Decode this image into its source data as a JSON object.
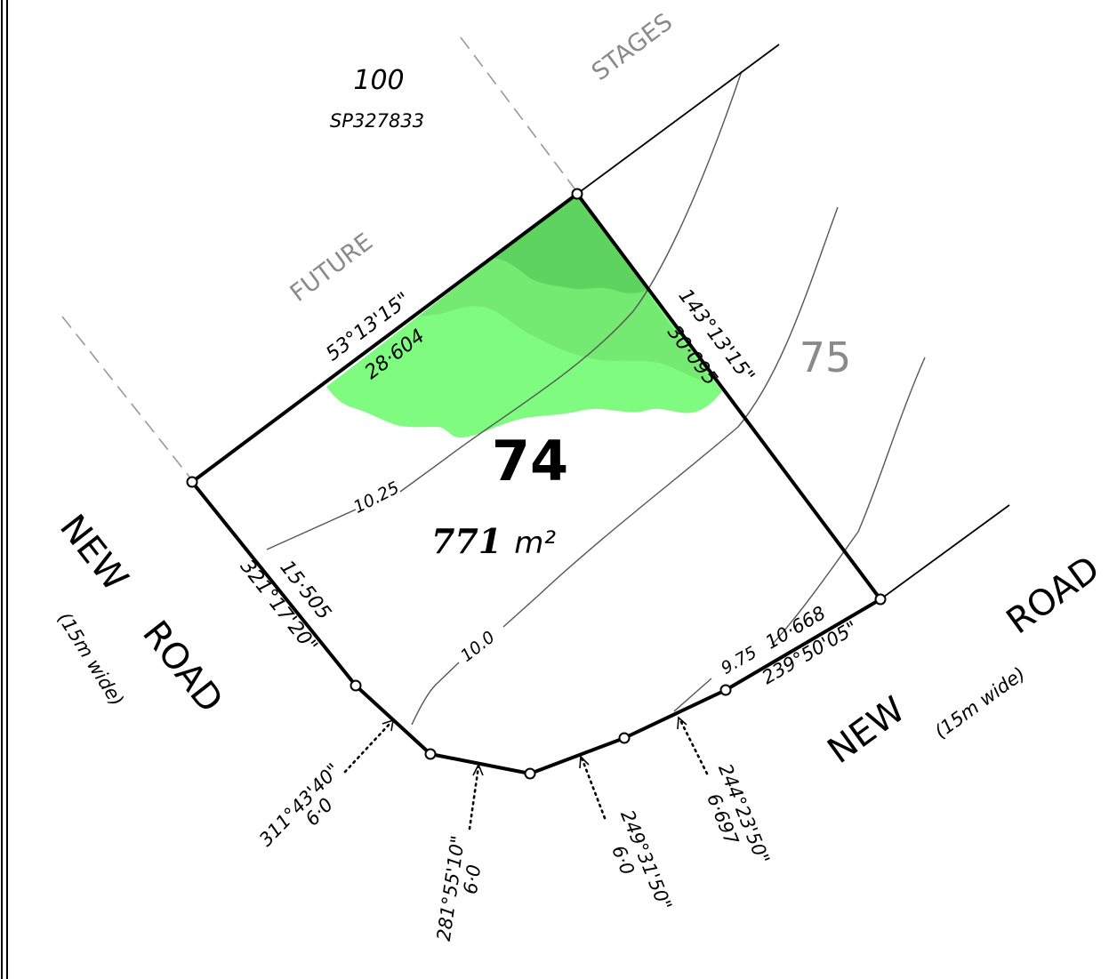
{
  "lot": {
    "number": "74",
    "area_value": "771",
    "area_unit": "m²"
  },
  "adjoining_lots": {
    "lot_75": "75",
    "lot_100": "100",
    "plan_100": "SP327833"
  },
  "future_stages": {
    "word1": "FUTURE",
    "word2": "STAGES"
  },
  "roads": {
    "left_name_1": "NEW",
    "left_name_2": "ROAD",
    "left_width": "(15m wide)",
    "right_name_1": "NEW",
    "right_name_2": "ROAD",
    "right_width": "(15m wide)"
  },
  "boundaries": {
    "north_bearing": "53°13'15\"",
    "north_distance": "28·604",
    "east_bearing": "143°13'15\"",
    "east_distance": "30·095",
    "west_bearing": "321°17'20\"",
    "west_distance": "15·505",
    "south_distance": "10·668",
    "south_bearing": "239°50'05\""
  },
  "arc_chords": [
    {
      "bearing": "311°43'40\"",
      "distance": "6·0"
    },
    {
      "bearing": "281°55'10\"",
      "distance": "6·0"
    },
    {
      "bearing": "249°31'50\"",
      "distance": "6·0"
    },
    {
      "bearing": "244°23'50\"",
      "distance": "6·697"
    }
  ],
  "contours": {
    "c1": "10.25",
    "c2": "10.0",
    "c3": "9.75"
  },
  "colors": {
    "vegetation_light": "#7ffc7f",
    "vegetation_mid": "#74ea72",
    "vegetation_dark": "#5fd35f",
    "boundary": "#000000",
    "contour": "#555555"
  }
}
